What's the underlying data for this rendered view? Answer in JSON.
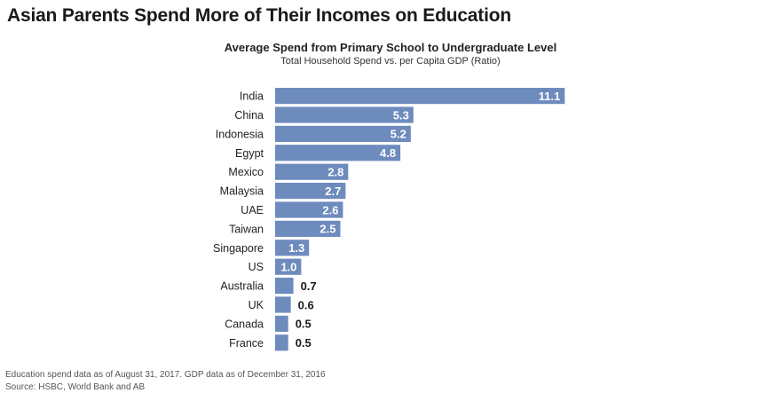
{
  "page": {
    "title": "Asian Parents Spend More of Their Incomes on Education",
    "footnote": "Education spend data as of August 31, 2017. GDP data as of December 31, 2016",
    "source": "Source: HSBC, World Bank and AB"
  },
  "colors": {
    "bar": "#6e8bbd",
    "label_inside": "#ffffff",
    "label_outside": "#1a1a1a"
  },
  "chart_data": {
    "type": "bar",
    "orientation": "horizontal",
    "title": "Average Spend from Primary School to Undergraduate Level",
    "subtitle": "Total Household Spend vs. per Capita GDP (Ratio)",
    "xlabel": "",
    "ylabel": "",
    "grid": false,
    "categories": [
      "India",
      "China",
      "Indonesia",
      "Egypt",
      "Mexico",
      "Malaysia",
      "UAE",
      "Taiwan",
      "Singapore",
      "US",
      "Australia",
      "UK",
      "Canada",
      "France"
    ],
    "values": [
      11.1,
      5.3,
      5.2,
      4.8,
      2.8,
      2.7,
      2.6,
      2.5,
      1.3,
      1.0,
      0.7,
      0.6,
      0.5,
      0.5
    ],
    "value_labels": [
      "11.1",
      "5.3",
      "5.2",
      "4.8",
      "2.8",
      "2.7",
      "2.6",
      "2.5",
      "1.3",
      "1.0",
      "0.7",
      "0.6",
      "0.5",
      "0.5"
    ]
  }
}
